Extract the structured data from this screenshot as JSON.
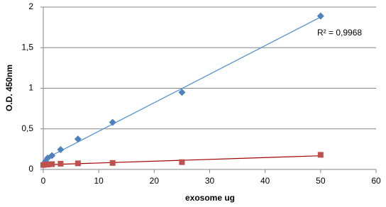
{
  "chart_data": {
    "type": "scatter",
    "x_label": "exosome ug",
    "y_label": "O.D. 450nm",
    "annotation": "R² = 0,9968",
    "xlim": [
      0,
      60
    ],
    "xticks": [
      0,
      10,
      20,
      30,
      40,
      50,
      60
    ],
    "ylim": [
      0,
      2
    ],
    "yticks": [
      0,
      {
        "value": 0.5,
        "label": "0,5"
      },
      1,
      {
        "value": 1.5,
        "label": "1,5"
      },
      2
    ],
    "grid": true,
    "series": [
      {
        "color": "#4f81bd",
        "trendline_color": "#4a8ed0",
        "marker": "diamond",
        "x": [
          0.39,
          0.78,
          1.56,
          3.125,
          6.25,
          12.5,
          25,
          50
        ],
        "values": [
          0.1,
          0.14,
          0.17,
          0.245,
          0.375,
          0.58,
          0.95,
          1.89
        ]
      },
      {
        "color": "#c0504d",
        "trendline_color": "#a00000",
        "marker": "square",
        "x": [
          0,
          0.39,
          0.78,
          1.56,
          3.125,
          6.25,
          12.5,
          25,
          50
        ],
        "values": [
          0.055,
          0.06,
          0.06,
          0.065,
          0.07,
          0.075,
          0.08,
          0.09,
          0.18
        ]
      }
    ]
  }
}
